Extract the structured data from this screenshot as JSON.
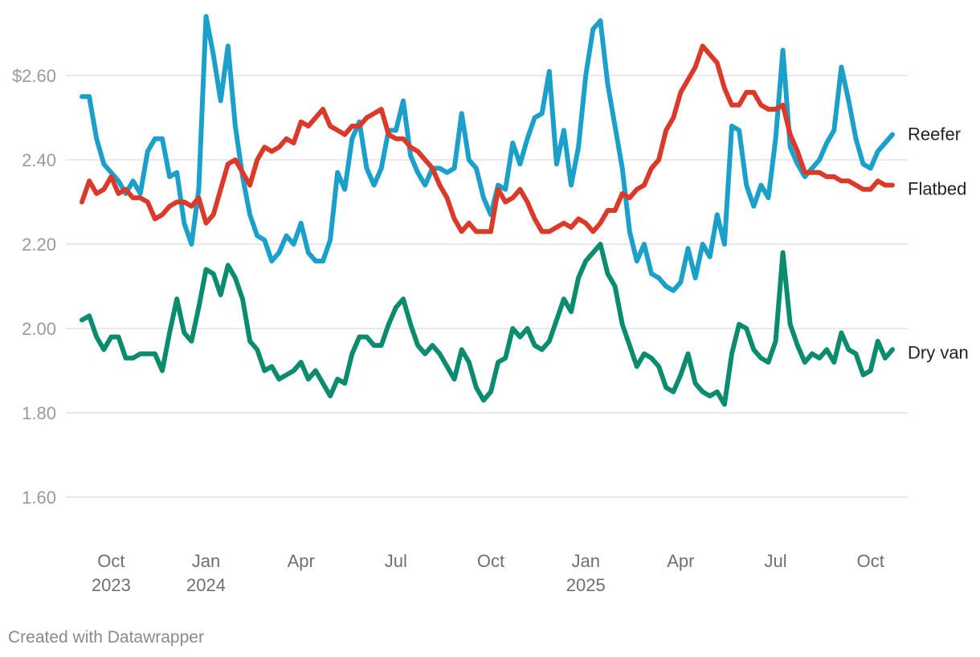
{
  "chart_data": {
    "type": "line",
    "title": "",
    "xlabel": "",
    "ylabel": "",
    "ylim": [
      1.6,
      2.7
    ],
    "yticks": [
      {
        "value": 2.6,
        "label": "$2.60"
      },
      {
        "value": 2.4,
        "label": "2.40"
      },
      {
        "value": 2.2,
        "label": "2.20"
      },
      {
        "value": 2.0,
        "label": "2.00"
      },
      {
        "value": 1.8,
        "label": "1.80"
      },
      {
        "value": 1.6,
        "label": "1.60"
      }
    ],
    "xticks": [
      {
        "week": 4,
        "label": "Oct",
        "year": "2023"
      },
      {
        "week": 17,
        "label": "Jan",
        "year": "2024"
      },
      {
        "week": 30,
        "label": "Apr",
        "year": ""
      },
      {
        "week": 43,
        "label": "Jul",
        "year": ""
      },
      {
        "week": 56,
        "label": "Oct",
        "year": ""
      },
      {
        "week": 69,
        "label": "Jan",
        "year": "2025"
      },
      {
        "week": 82,
        "label": "Apr",
        "year": ""
      },
      {
        "week": 95,
        "label": "Jul",
        "year": ""
      },
      {
        "week": 108,
        "label": "Oct",
        "year": ""
      }
    ],
    "series": [
      {
        "name": "Reefer",
        "color": "#1ba0c9",
        "values": [
          2.55,
          2.55,
          2.45,
          2.39,
          2.37,
          2.35,
          2.32,
          2.35,
          2.32,
          2.42,
          2.45,
          2.45,
          2.36,
          2.37,
          2.25,
          2.2,
          2.33,
          2.74,
          2.65,
          2.54,
          2.67,
          2.48,
          2.36,
          2.27,
          2.22,
          2.21,
          2.16,
          2.18,
          2.22,
          2.2,
          2.25,
          2.18,
          2.16,
          2.16,
          2.21,
          2.37,
          2.33,
          2.45,
          2.49,
          2.38,
          2.34,
          2.38,
          2.47,
          2.47,
          2.54,
          2.41,
          2.37,
          2.34,
          2.38,
          2.38,
          2.37,
          2.38,
          2.51,
          2.4,
          2.38,
          2.31,
          2.27,
          2.34,
          2.33,
          2.44,
          2.39,
          2.45,
          2.5,
          2.51,
          2.61,
          2.39,
          2.47,
          2.34,
          2.43,
          2.6,
          2.71,
          2.73,
          2.58,
          2.48,
          2.38,
          2.23,
          2.16,
          2.2,
          2.13,
          2.12,
          2.1,
          2.09,
          2.11,
          2.19,
          2.12,
          2.2,
          2.17,
          2.27,
          2.2,
          2.48,
          2.47,
          2.34,
          2.29,
          2.34,
          2.31,
          2.45,
          2.66,
          2.43,
          2.39,
          2.36,
          2.38,
          2.4,
          2.44,
          2.47,
          2.62,
          2.54,
          2.45,
          2.39,
          2.38,
          2.42,
          2.44,
          2.46
        ]
      },
      {
        "name": "Flatbed",
        "color": "#db3a2b",
        "values": [
          2.3,
          2.35,
          2.32,
          2.33,
          2.36,
          2.32,
          2.33,
          2.31,
          2.31,
          2.3,
          2.26,
          2.27,
          2.29,
          2.3,
          2.3,
          2.29,
          2.31,
          2.25,
          2.27,
          2.33,
          2.39,
          2.4,
          2.37,
          2.34,
          2.4,
          2.43,
          2.42,
          2.43,
          2.45,
          2.44,
          2.49,
          2.48,
          2.5,
          2.52,
          2.48,
          2.47,
          2.46,
          2.48,
          2.48,
          2.5,
          2.51,
          2.52,
          2.46,
          2.45,
          2.45,
          2.43,
          2.42,
          2.4,
          2.38,
          2.34,
          2.31,
          2.26,
          2.23,
          2.25,
          2.23,
          2.23,
          2.23,
          2.33,
          2.3,
          2.31,
          2.33,
          2.3,
          2.26,
          2.23,
          2.23,
          2.24,
          2.25,
          2.24,
          2.26,
          2.25,
          2.23,
          2.25,
          2.28,
          2.28,
          2.32,
          2.31,
          2.33,
          2.34,
          2.38,
          2.4,
          2.47,
          2.5,
          2.56,
          2.59,
          2.62,
          2.67,
          2.65,
          2.63,
          2.57,
          2.53,
          2.53,
          2.56,
          2.56,
          2.53,
          2.52,
          2.52,
          2.53,
          2.46,
          2.42,
          2.37,
          2.37,
          2.37,
          2.36,
          2.36,
          2.35,
          2.35,
          2.34,
          2.33,
          2.33,
          2.35,
          2.34,
          2.34
        ]
      },
      {
        "name": "Dry van",
        "color": "#0b8c6e",
        "values": [
          2.02,
          2.03,
          1.98,
          1.95,
          1.98,
          1.98,
          1.93,
          1.93,
          1.94,
          1.94,
          1.94,
          1.9,
          1.99,
          2.07,
          1.99,
          1.97,
          2.05,
          2.14,
          2.13,
          2.08,
          2.15,
          2.12,
          2.07,
          1.97,
          1.95,
          1.9,
          1.91,
          1.88,
          1.89,
          1.9,
          1.92,
          1.88,
          1.9,
          1.87,
          1.84,
          1.88,
          1.87,
          1.94,
          1.98,
          1.98,
          1.96,
          1.96,
          2.01,
          2.05,
          2.07,
          2.01,
          1.96,
          1.94,
          1.96,
          1.94,
          1.91,
          1.88,
          1.95,
          1.92,
          1.86,
          1.83,
          1.85,
          1.92,
          1.93,
          2.0,
          1.98,
          2.0,
          1.96,
          1.95,
          1.97,
          2.02,
          2.07,
          2.04,
          2.12,
          2.16,
          2.18,
          2.2,
          2.13,
          2.1,
          2.01,
          1.96,
          1.91,
          1.94,
          1.93,
          1.91,
          1.86,
          1.85,
          1.89,
          1.94,
          1.87,
          1.85,
          1.84,
          1.85,
          1.82,
          1.94,
          2.01,
          2.0,
          1.95,
          1.93,
          1.92,
          1.97,
          2.18,
          2.01,
          1.96,
          1.92,
          1.94,
          1.93,
          1.95,
          1.92,
          1.99,
          1.95,
          1.94,
          1.89,
          1.9,
          1.97,
          1.93,
          1.95
        ]
      }
    ]
  },
  "footer": {
    "credit": "Created with Datawrapper"
  }
}
